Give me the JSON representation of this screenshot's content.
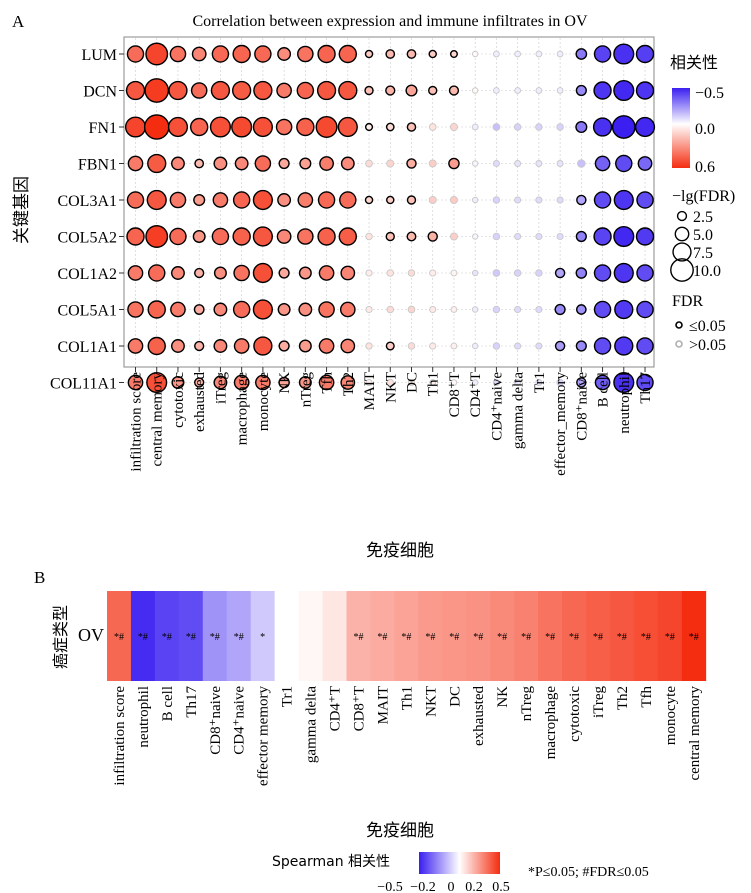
{
  "panel_a": {
    "panel_label": "A",
    "title": "Correlation between expression and immune infiltrates in OV",
    "ylabel": "关键基因",
    "xlabel": "免疫细胞",
    "legend": {
      "corr_title": "相关性",
      "corr_ticks": [
        "−0.5",
        "0.0",
        "0.6"
      ],
      "size_title": "−lg(FDR)",
      "size_ticks": [
        "2.5",
        "5.0",
        "7.5",
        "10.0"
      ],
      "fdr_title": "FDR",
      "fdr_items": [
        "≤0.05",
        ">0.05"
      ]
    }
  },
  "panel_b": {
    "panel_label": "B",
    "ylabel": "癌症类型",
    "row_label": "OV",
    "xlabel": "免疫细胞",
    "colorbar_title": "Spearman 相关性",
    "colorbar_ticks": [
      "−0.5",
      "−0.2",
      "0",
      "0.2",
      "0.5"
    ],
    "footnote": "*P≤0.05; #FDR≤0.05"
  },
  "colors": {
    "negative": "#3a1ff0",
    "neutral": "#ffffff",
    "positive": "#f42d10",
    "frame": "#888888",
    "grid": "#cccccc"
  },
  "chart_data": [
    {
      "type": "scatter",
      "subtype": "bubble-matrix",
      "title": "Correlation between expression and immune infiltrates in OV",
      "xlabel": "免疫细胞",
      "ylabel": "关键基因",
      "genes": [
        "LUM",
        "DCN",
        "FN1",
        "FBN1",
        "COL3A1",
        "COL5A2",
        "COL1A2",
        "COL5A1",
        "COL1A1",
        "COL11A1"
      ],
      "cells": [
        "infiltration score",
        "central memory",
        "cytotoxic",
        "exhausted",
        "iTreg",
        "macrophage",
        "monocyte",
        "NK",
        "nTreg",
        "Tfh",
        "Th2",
        "MAIT",
        "NKT",
        "DC",
        "Th1",
        "CD8⁺T",
        "CD4⁺T",
        "CD4⁺naive",
        "gamma delta",
        "Tr1",
        "effector_memory",
        "CD8⁺naive",
        "B cell",
        "neutrophil",
        "Th17"
      ],
      "color_range": [
        -0.5,
        0.6
      ],
      "corr": [
        [
          0.42,
          0.53,
          0.4,
          0.35,
          0.43,
          0.44,
          0.43,
          0.33,
          0.4,
          0.44,
          0.44,
          0.15,
          0.2,
          0.2,
          0.15,
          0.12,
          0.02,
          -0.04,
          -0.04,
          -0.04,
          -0.04,
          -0.3,
          -0.42,
          -0.46,
          -0.43
        ],
        [
          0.48,
          0.56,
          0.48,
          0.42,
          0.48,
          0.47,
          0.48,
          0.38,
          0.44,
          0.48,
          0.48,
          0.18,
          0.22,
          0.26,
          0.18,
          0.2,
          0.02,
          -0.04,
          -0.04,
          -0.04,
          -0.04,
          -0.26,
          -0.45,
          -0.48,
          -0.45
        ],
        [
          0.53,
          0.6,
          0.5,
          0.44,
          0.5,
          0.52,
          0.5,
          0.4,
          0.45,
          0.52,
          0.48,
          0.05,
          0.1,
          0.18,
          0.08,
          0.12,
          -0.04,
          -0.14,
          -0.1,
          -0.1,
          -0.1,
          -0.3,
          -0.46,
          -0.52,
          -0.48
        ],
        [
          0.38,
          0.47,
          0.34,
          0.2,
          0.32,
          0.34,
          0.42,
          0.25,
          0.27,
          0.37,
          0.33,
          0.1,
          0.12,
          0.23,
          0.14,
          0.28,
          -0.02,
          -0.08,
          -0.06,
          -0.06,
          -0.06,
          -0.14,
          -0.35,
          -0.4,
          -0.34
        ],
        [
          0.42,
          0.48,
          0.38,
          0.28,
          0.38,
          0.44,
          0.5,
          0.32,
          0.37,
          0.43,
          0.42,
          0.12,
          0.14,
          0.18,
          0.14,
          0.15,
          -0.04,
          -0.1,
          -0.08,
          -0.08,
          -0.08,
          -0.2,
          -0.4,
          -0.45,
          -0.4
        ],
        [
          0.44,
          0.55,
          0.42,
          0.3,
          0.42,
          0.45,
          0.48,
          0.34,
          0.4,
          0.45,
          0.46,
          0.08,
          0.18,
          0.2,
          0.22,
          0.14,
          -0.02,
          -0.1,
          -0.08,
          -0.08,
          -0.08,
          -0.28,
          -0.42,
          -0.48,
          -0.44
        ],
        [
          0.38,
          0.42,
          0.34,
          0.22,
          0.32,
          0.4,
          0.5,
          0.25,
          0.3,
          0.38,
          0.35,
          0.05,
          0.08,
          0.1,
          0.05,
          0.03,
          -0.06,
          -0.12,
          -0.1,
          -0.1,
          -0.2,
          -0.28,
          -0.4,
          -0.45,
          -0.4
        ],
        [
          0.4,
          0.44,
          0.38,
          0.24,
          0.34,
          0.42,
          0.5,
          0.3,
          0.32,
          0.4,
          0.38,
          0.06,
          0.1,
          0.12,
          0.06,
          0.04,
          -0.04,
          -0.1,
          -0.08,
          -0.08,
          -0.26,
          -0.24,
          -0.4,
          -0.44,
          -0.4
        ],
        [
          0.38,
          0.45,
          0.32,
          0.22,
          0.34,
          0.38,
          0.48,
          0.24,
          0.28,
          0.38,
          0.35,
          0.08,
          0.14,
          0.1,
          0.06,
          0.04,
          -0.04,
          -0.1,
          -0.08,
          -0.08,
          -0.22,
          -0.26,
          -0.4,
          -0.44,
          -0.4
        ],
        [
          0.38,
          0.5,
          0.3,
          0.22,
          0.34,
          0.38,
          0.38,
          0.26,
          0.3,
          0.38,
          0.35,
          0.04,
          0.08,
          0.06,
          0.04,
          0.02,
          -0.04,
          -0.08,
          -0.06,
          -0.06,
          -0.1,
          -0.2,
          -0.36,
          -0.46,
          -0.4
        ]
      ],
      "neg_log10_fdr": [
        [
          6.5,
          9.5,
          6.0,
          5.0,
          6.5,
          7.0,
          6.5,
          4.5,
          6.0,
          7.0,
          7.0,
          1.5,
          2.2,
          2.2,
          1.5,
          1.2,
          0.6,
          0.8,
          0.8,
          0.8,
          0.8,
          3.3,
          6.5,
          8.5,
          7.0
        ],
        [
          7.5,
          10.5,
          7.5,
          6.0,
          7.5,
          7.5,
          7.5,
          5.5,
          6.5,
          7.5,
          7.5,
          2.0,
          2.5,
          3.5,
          2.0,
          2.5,
          0.6,
          0.8,
          0.8,
          0.8,
          0.8,
          3.0,
          7.0,
          8.5,
          7.0
        ],
        [
          8.5,
          11.0,
          8.0,
          7.0,
          8.5,
          8.5,
          8.0,
          6.0,
          7.0,
          9.0,
          8.0,
          1.3,
          1.6,
          2.1,
          1.3,
          1.5,
          0.8,
          1.4,
          1.2,
          1.2,
          1.2,
          3.5,
          7.5,
          10.0,
          8.0
        ],
        [
          5.5,
          7.5,
          4.5,
          2.2,
          4.5,
          4.5,
          6.0,
          3.0,
          3.5,
          5.0,
          4.5,
          1.3,
          1.5,
          2.6,
          1.5,
          3.2,
          0.6,
          1.0,
          0.9,
          0.9,
          0.9,
          1.8,
          5.5,
          6.5,
          5.0
        ],
        [
          6.5,
          8.0,
          6.0,
          3.5,
          5.5,
          6.5,
          8.0,
          4.5,
          5.5,
          6.5,
          6.5,
          1.5,
          1.5,
          2.0,
          1.5,
          1.5,
          0.6,
          1.2,
          1.0,
          1.0,
          1.0,
          2.6,
          6.5,
          8.0,
          6.5
        ],
        [
          7.0,
          9.5,
          6.5,
          4.0,
          6.5,
          7.0,
          8.0,
          5.0,
          6.0,
          7.0,
          7.0,
          1.2,
          2.0,
          2.3,
          2.6,
          1.5,
          0.5,
          1.2,
          1.0,
          1.0,
          1.0,
          3.0,
          7.0,
          8.5,
          7.0
        ],
        [
          5.5,
          6.5,
          4.5,
          2.5,
          4.0,
          6.0,
          8.0,
          3.0,
          4.0,
          5.5,
          5.0,
          1.0,
          1.2,
          1.2,
          1.0,
          0.8,
          0.6,
          1.3,
          1.2,
          1.2,
          2.6,
          3.2,
          6.5,
          8.0,
          6.5
        ],
        [
          6.0,
          7.0,
          5.5,
          2.8,
          4.5,
          6.5,
          8.0,
          4.0,
          4.5,
          6.0,
          5.5,
          1.0,
          1.2,
          1.3,
          1.0,
          0.8,
          0.6,
          1.2,
          1.0,
          1.0,
          3.0,
          2.7,
          6.5,
          7.5,
          6.5
        ],
        [
          5.5,
          7.0,
          4.5,
          2.5,
          4.5,
          5.5,
          7.5,
          3.0,
          4.0,
          5.5,
          5.0,
          1.1,
          1.8,
          1.2,
          1.0,
          0.8,
          0.6,
          1.2,
          1.0,
          1.0,
          2.6,
          3.0,
          6.5,
          7.5,
          6.5
        ],
        [
          5.5,
          8.5,
          4.0,
          2.5,
          4.5,
          5.5,
          5.5,
          3.2,
          4.0,
          5.5,
          5.0,
          0.9,
          1.1,
          1.0,
          0.8,
          0.7,
          0.6,
          1.0,
          0.9,
          0.9,
          1.2,
          2.6,
          5.5,
          8.5,
          6.5
        ]
      ],
      "fdr_significant": [
        [
          true,
          true,
          true,
          true,
          true,
          true,
          true,
          true,
          true,
          true,
          true,
          true,
          true,
          true,
          true,
          true,
          false,
          false,
          false,
          false,
          false,
          true,
          true,
          true,
          true
        ],
        [
          true,
          true,
          true,
          true,
          true,
          true,
          true,
          true,
          true,
          true,
          true,
          true,
          true,
          true,
          true,
          true,
          false,
          false,
          false,
          false,
          false,
          true,
          true,
          true,
          true
        ],
        [
          true,
          true,
          true,
          true,
          true,
          true,
          true,
          true,
          true,
          true,
          true,
          true,
          true,
          true,
          false,
          false,
          false,
          false,
          false,
          false,
          false,
          true,
          true,
          true,
          true
        ],
        [
          true,
          true,
          true,
          true,
          true,
          true,
          true,
          true,
          true,
          true,
          true,
          false,
          false,
          true,
          false,
          true,
          false,
          false,
          false,
          false,
          false,
          false,
          true,
          true,
          true
        ],
        [
          true,
          true,
          true,
          true,
          true,
          true,
          true,
          true,
          true,
          true,
          true,
          true,
          true,
          true,
          false,
          false,
          false,
          false,
          false,
          false,
          false,
          true,
          true,
          true,
          true
        ],
        [
          true,
          true,
          true,
          true,
          true,
          true,
          true,
          true,
          true,
          true,
          true,
          false,
          true,
          true,
          true,
          false,
          false,
          false,
          false,
          false,
          false,
          true,
          true,
          true,
          true
        ],
        [
          true,
          true,
          true,
          true,
          true,
          true,
          true,
          true,
          true,
          true,
          true,
          false,
          false,
          false,
          false,
          false,
          false,
          false,
          false,
          false,
          true,
          true,
          true,
          true,
          true
        ],
        [
          true,
          true,
          true,
          true,
          true,
          true,
          true,
          true,
          true,
          true,
          true,
          false,
          false,
          false,
          false,
          false,
          false,
          false,
          false,
          false,
          true,
          true,
          true,
          true,
          true
        ],
        [
          true,
          true,
          true,
          true,
          true,
          true,
          true,
          true,
          true,
          true,
          true,
          false,
          true,
          false,
          false,
          false,
          false,
          false,
          false,
          false,
          true,
          true,
          true,
          true,
          true
        ],
        [
          true,
          true,
          true,
          true,
          true,
          true,
          true,
          true,
          true,
          true,
          true,
          false,
          false,
          false,
          false,
          false,
          false,
          false,
          false,
          false,
          false,
          true,
          true,
          true,
          true
        ]
      ],
      "size_legend_values": [
        2.5,
        5.0,
        7.5,
        10.0
      ]
    },
    {
      "type": "heatmap",
      "xlabel": "免疫细胞",
      "ylabel": "癌症类型",
      "rows": [
        "OV"
      ],
      "cells": [
        "infiltration score",
        "neutrophil",
        "B cell",
        "Th17",
        "CD8⁺naive",
        "CD4⁺naive",
        "effector memory",
        "Tr1",
        "gamma delta",
        "CD4⁺T",
        "CD8⁺T",
        "MAIT",
        "Th1",
        "NKT",
        "DC",
        "exhausted",
        "NK",
        "nTreg",
        "macrophage",
        "cytotoxic",
        "iTreg",
        "Th2",
        "Tfh",
        "monocyte",
        "central memory"
      ],
      "values": [
        0.36,
        -0.47,
        -0.42,
        -0.4,
        -0.24,
        -0.2,
        -0.12,
        0.0,
        0.02,
        0.06,
        0.18,
        0.2,
        0.22,
        0.24,
        0.25,
        0.26,
        0.28,
        0.3,
        0.33,
        0.36,
        0.38,
        0.4,
        0.42,
        0.44,
        0.56
      ],
      "marks": [
        "*#",
        "*#",
        "*#",
        "*#",
        "*#",
        "*#",
        "*",
        "",
        "",
        "",
        "*#",
        "*#",
        "*#",
        "*#",
        "*#",
        "*#",
        "*#",
        "*#",
        "*#",
        "*#",
        "*#",
        "*#",
        "*#",
        "*#",
        "*#"
      ],
      "color_range": [
        -0.5,
        0.5
      ]
    }
  ]
}
